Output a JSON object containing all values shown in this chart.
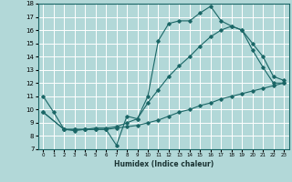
{
  "xlabel": "Humidex (Indice chaleur)",
  "bg_color": "#b2d8d8",
  "grid_color": "#ffffff",
  "line_color": "#1a6666",
  "xlim": [
    -0.5,
    23.5
  ],
  "ylim": [
    7,
    18
  ],
  "xticks": [
    0,
    1,
    2,
    3,
    4,
    5,
    6,
    7,
    8,
    9,
    10,
    11,
    12,
    13,
    14,
    15,
    16,
    17,
    18,
    19,
    20,
    21,
    22,
    23
  ],
  "yticks": [
    7,
    8,
    9,
    10,
    11,
    12,
    13,
    14,
    15,
    16,
    17,
    18
  ],
  "line1_x": [
    0,
    1,
    2,
    3,
    4,
    5,
    6,
    7,
    8,
    9,
    10,
    11,
    12,
    13,
    14,
    15,
    16,
    17,
    18,
    19,
    20,
    21,
    22,
    23
  ],
  "line1_y": [
    11,
    9.8,
    8.5,
    8.4,
    8.5,
    8.5,
    8.5,
    7.3,
    9.5,
    9.3,
    11.0,
    15.2,
    16.5,
    16.7,
    16.7,
    17.3,
    17.8,
    16.7,
    16.3,
    16.0,
    14.5,
    13.2,
    12.0,
    12.0
  ],
  "line2_x": [
    0,
    2,
    3,
    4,
    5,
    6,
    7,
    8,
    9,
    10,
    11,
    12,
    13,
    14,
    15,
    16,
    17,
    18,
    19,
    20,
    21,
    22,
    23
  ],
  "line2_y": [
    9.8,
    8.5,
    8.5,
    8.5,
    8.6,
    8.6,
    8.7,
    9.0,
    9.3,
    10.5,
    11.5,
    12.5,
    13.3,
    14.0,
    14.8,
    15.5,
    16.0,
    16.3,
    16.0,
    15.0,
    14.0,
    12.5,
    12.2
  ],
  "line3_x": [
    0,
    2,
    3,
    4,
    5,
    6,
    7,
    8,
    9,
    10,
    11,
    12,
    13,
    14,
    15,
    16,
    17,
    18,
    19,
    20,
    21,
    22,
    23
  ],
  "line3_y": [
    9.8,
    8.5,
    8.5,
    8.5,
    8.5,
    8.5,
    8.6,
    8.7,
    8.8,
    9.0,
    9.2,
    9.5,
    9.8,
    10.0,
    10.3,
    10.5,
    10.8,
    11.0,
    11.2,
    11.4,
    11.6,
    11.8,
    12.0
  ]
}
